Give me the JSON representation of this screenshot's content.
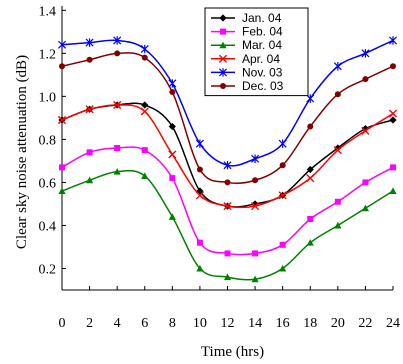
{
  "chart_data": {
    "type": "line",
    "xlabel": "Time (hrs)",
    "ylabel": "Clear sky noise attenuation (dB)",
    "xlim": [
      0,
      24
    ],
    "ylim": [
      0.1,
      1.42
    ],
    "xticks": [
      "0",
      "2",
      "4",
      "6",
      "8",
      "10",
      "12",
      "14",
      "16",
      "18",
      "20",
      "22",
      "24"
    ],
    "yticks": [
      "0.2",
      "0.4",
      "0.6",
      "0.8",
      "1.0",
      "1.2",
      "1.4"
    ],
    "x": [
      0,
      2,
      4,
      6,
      8,
      10,
      12,
      14,
      16,
      18,
      20,
      22,
      24
    ],
    "legend_position": "top-center",
    "series": [
      {
        "name": "Jan. 04",
        "color": "#000000",
        "marker": "diamond",
        "values": [
          0.89,
          0.94,
          0.96,
          0.96,
          0.86,
          0.56,
          0.49,
          0.5,
          0.54,
          0.66,
          0.76,
          0.85,
          0.89
        ]
      },
      {
        "name": "Feb. 04",
        "color": "#ff00ff",
        "marker": "square",
        "values": [
          0.67,
          0.74,
          0.76,
          0.75,
          0.62,
          0.32,
          0.27,
          0.27,
          0.31,
          0.43,
          0.51,
          0.6,
          0.67
        ]
      },
      {
        "name": "Mar. 04",
        "color": "#008000",
        "marker": "triangle",
        "values": [
          0.56,
          0.61,
          0.65,
          0.63,
          0.44,
          0.2,
          0.16,
          0.15,
          0.2,
          0.32,
          0.4,
          0.48,
          0.56
        ]
      },
      {
        "name": "Apr. 04",
        "color": "#ff0000",
        "marker": "x",
        "values": [
          0.89,
          0.94,
          0.96,
          0.93,
          0.73,
          0.54,
          0.49,
          0.49,
          0.54,
          0.62,
          0.75,
          0.84,
          0.92
        ]
      },
      {
        "name": "Nov. 03",
        "color": "#0000ff",
        "marker": "star",
        "values": [
          1.24,
          1.25,
          1.26,
          1.22,
          1.06,
          0.78,
          0.68,
          0.71,
          0.78,
          0.99,
          1.14,
          1.2,
          1.26
        ]
      },
      {
        "name": "Dec. 03",
        "color": "#800000",
        "marker": "circle",
        "values": [
          1.14,
          1.17,
          1.2,
          1.18,
          1.02,
          0.66,
          0.6,
          0.61,
          0.68,
          0.86,
          1.01,
          1.08,
          1.14
        ]
      }
    ]
  }
}
